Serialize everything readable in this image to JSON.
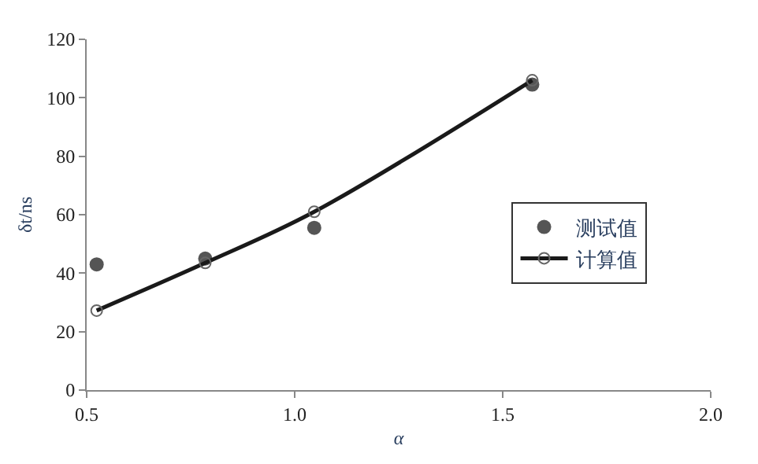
{
  "chart_data": {
    "type": "scatter",
    "xlabel": "α",
    "ylabel": "δt/ns",
    "xlim": [
      0.5,
      2.0
    ],
    "ylim": [
      0,
      120
    ],
    "xticks": [
      {
        "value": 0.5,
        "label": "0.5"
      },
      {
        "value": 1.0,
        "label": "1.0"
      },
      {
        "value": 1.5,
        "label": "1.5"
      },
      {
        "value": 2.0,
        "label": "2.0"
      }
    ],
    "yticks": [
      0,
      20,
      40,
      60,
      80,
      100,
      120
    ],
    "legend": "right",
    "series": [
      {
        "name": "测试值",
        "marker": "circle",
        "color": "#555555",
        "x": [
          0.524,
          0.785,
          1.047,
          1.571
        ],
        "values": [
          43,
          45,
          55.5,
          104.5
        ]
      },
      {
        "name": "计算值",
        "type": "line",
        "marker": "circle",
        "line_style": "solid",
        "color": "#1a1a1a",
        "x": [
          0.524,
          0.785,
          1.047,
          1.571
        ],
        "values": [
          27.2,
          43.5,
          61,
          106
        ]
      }
    ]
  }
}
